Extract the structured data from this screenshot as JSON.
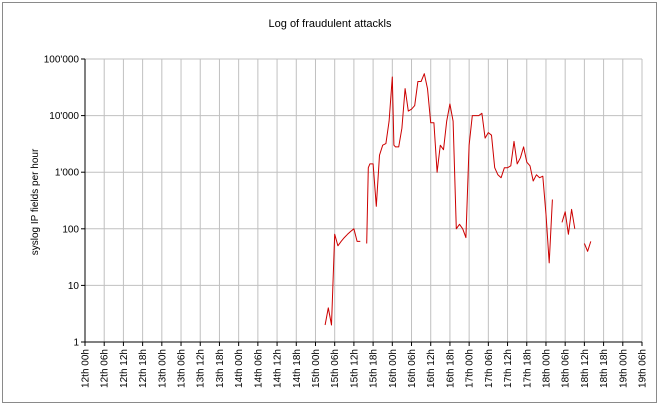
{
  "chart_data": {
    "type": "line",
    "title": "Log of fraudulent attackls",
    "ylabel": "syslog IP  fields per hour",
    "xlabel": "",
    "yscale": "log",
    "ylim": [
      1,
      100000
    ],
    "y_ticks": [
      "1",
      "10",
      "100",
      "1'000",
      "10'000",
      "100'000"
    ],
    "x_ticks": [
      "12th 00h",
      "12th 06h",
      "12th 12h",
      "12th 18h",
      "13th 00h",
      "13th 06h",
      "13th 12h",
      "13th 18h",
      "14th 00h",
      "14th 06h",
      "14th 12h",
      "14th 18h",
      "15th 00h",
      "15th 06h",
      "15th 12h",
      "15th 18h",
      "16th 00h",
      "16th 06h",
      "16th 12h",
      "16th 18h",
      "17th 00h",
      "17th 06h",
      "17th 12h",
      "17th 18h",
      "18th 00h",
      "18th 06h",
      "18th 12h",
      "18th 18h",
      "19th 00h",
      "19th 06h"
    ],
    "xlim_hours": [
      0,
      174
    ],
    "grid": true,
    "line_color": "#cc0000",
    "series": [
      {
        "segments": [
          [
            [
              75,
              2
            ],
            [
              76,
              4
            ],
            [
              77,
              2
            ],
            [
              78,
              80
            ],
            [
              79,
              50
            ],
            [
              80,
              60
            ],
            [
              81,
              70
            ],
            [
              82,
              80
            ],
            [
              83,
              90
            ],
            [
              84,
              100
            ],
            [
              85,
              60
            ],
            [
              86,
              60
            ]
          ],
          [
            [
              88,
              55
            ],
            [
              88.5,
              1200
            ],
            [
              89,
              1400
            ],
            [
              90,
              1400
            ],
            [
              91,
              250
            ],
            [
              92,
              2000
            ],
            [
              93,
              3000
            ],
            [
              94,
              3200
            ],
            [
              95,
              8000
            ],
            [
              96,
              48000
            ],
            [
              96.5,
              3000
            ],
            [
              97,
              2800
            ],
            [
              98,
              2800
            ],
            [
              99,
              6000
            ],
            [
              100,
              30000
            ],
            [
              101,
              12000
            ],
            [
              102,
              13000
            ],
            [
              103,
              15000
            ],
            [
              104,
              40000
            ],
            [
              105,
              40000
            ],
            [
              106,
              55000
            ],
            [
              107,
              30000
            ],
            [
              108,
              7500
            ],
            [
              109,
              7500
            ],
            [
              110,
              1000
            ],
            [
              111,
              3000
            ],
            [
              112,
              2500
            ],
            [
              113,
              8000
            ],
            [
              114,
              16000
            ],
            [
              115,
              8000
            ],
            [
              116,
              100
            ],
            [
              117,
              120
            ],
            [
              118,
              100
            ],
            [
              119,
              70
            ],
            [
              120,
              3000
            ],
            [
              121,
              10000
            ],
            [
              122,
              10000
            ],
            [
              123,
              10000
            ],
            [
              124,
              11000
            ],
            [
              125,
              4000
            ],
            [
              126,
              5000
            ],
            [
              127,
              4500
            ],
            [
              128,
              1200
            ],
            [
              129,
              900
            ],
            [
              130,
              800
            ],
            [
              131,
              1200
            ],
            [
              132,
              1200
            ],
            [
              133,
              1300
            ],
            [
              134,
              3500
            ],
            [
              135,
              1400
            ],
            [
              136,
              1800
            ],
            [
              137,
              2800
            ],
            [
              138,
              1500
            ],
            [
              139,
              1300
            ],
            [
              140,
              700
            ],
            [
              141,
              900
            ],
            [
              142,
              800
            ],
            [
              143,
              850
            ],
            [
              144,
              180
            ],
            [
              145,
              25
            ],
            [
              146,
              330
            ]
          ],
          [
            [
              149,
              130
            ],
            [
              150,
              200
            ],
            [
              151,
              80
            ],
            [
              152,
              220
            ],
            [
              153,
              100
            ]
          ],
          [
            [
              156,
              55
            ],
            [
              157,
              40
            ],
            [
              158,
              60
            ]
          ]
        ]
      }
    ]
  }
}
